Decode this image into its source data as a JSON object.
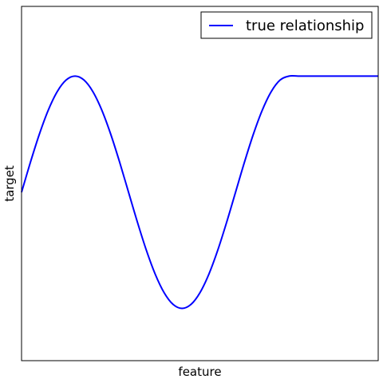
{
  "chart_data": {
    "type": "line",
    "title": "",
    "xlabel": "feature",
    "ylabel": "target",
    "xlim": [
      0,
      10
    ],
    "ylim": [
      -1.45,
      1.6
    ],
    "grid": false,
    "legend_position": "top-right",
    "series": [
      {
        "name": "true relationship",
        "color": "#0000ff",
        "x": [
          0,
          0.25,
          0.5,
          0.75,
          1,
          1.25,
          1.5,
          1.75,
          2,
          2.25,
          2.5,
          2.75,
          3,
          3.25,
          3.5,
          3.75,
          4,
          4.25,
          4.5,
          4.75,
          5,
          5.25,
          5.5,
          5.75,
          6,
          6.25,
          6.5,
          6.75,
          7,
          7.25,
          7.5,
          7.75,
          8,
          8.25,
          8.5,
          8.75,
          9,
          9.25,
          9.5,
          9.75,
          10
        ],
        "y": [
          0,
          0.259,
          0.5,
          0.707,
          0.866,
          0.966,
          1.0,
          0.966,
          0.866,
          0.707,
          0.5,
          0.259,
          0.0,
          -0.259,
          -0.5,
          -0.707,
          -0.866,
          -0.966,
          -1.0,
          -0.966,
          -0.866,
          -0.707,
          -0.5,
          -0.259,
          0.0,
          0.259,
          0.5,
          0.707,
          0.866,
          0.966,
          1.0,
          1.0,
          1.0,
          1.0,
          1.0,
          1.0,
          1.0,
          1.0,
          1.0,
          1.0,
          1.0
        ]
      }
    ]
  }
}
